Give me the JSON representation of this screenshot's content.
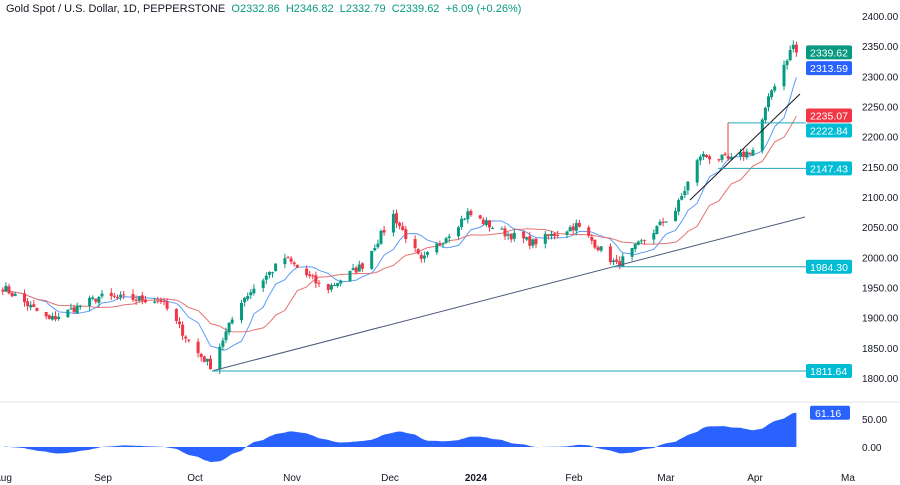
{
  "header": {
    "symbol": "Gold Spot / U.S. Dollar, 1D, PEPPERSTONE",
    "open": "O2332.86",
    "high": "H2346.82",
    "low": "L2332.79",
    "close": "C2339.62",
    "change": "+6.09 (+0.26%)"
  },
  "chart_data": {
    "type": "candlestick",
    "price_axis": {
      "ticks": [
        "2400.00",
        "2350.00",
        "2300.00",
        "2250.00",
        "2200.00",
        "2150.00",
        "2100.00",
        "2050.00",
        "2000.00",
        "1950.00",
        "1900.00",
        "1850.00",
        "1800.00"
      ],
      "range": [
        1790,
        2405
      ]
    },
    "time_axis": {
      "ticks": [
        "Aug",
        "Sep",
        "Oct",
        "Nov",
        "Dec",
        "2024",
        "Feb",
        "Mar",
        "Apr",
        "Ma"
      ]
    },
    "close_path": [
      [
        "2023-07-30",
        1954
      ],
      [
        "2023-08-15",
        1896
      ],
      [
        "2023-08-31",
        1934
      ],
      [
        "2023-09-20",
        1929
      ],
      [
        "2023-10-01",
        1846
      ],
      [
        "2023-10-06",
        1821
      ],
      [
        "2023-10-16",
        1929
      ],
      [
        "2023-10-30",
        1999
      ],
      [
        "2023-11-12",
        1946
      ],
      [
        "2023-11-24",
        1987
      ],
      [
        "2023-12-04",
        2070
      ],
      [
        "2023-12-13",
        1992
      ],
      [
        "2023-12-28",
        2073
      ],
      [
        "2024-01-08",
        2042
      ],
      [
        "2024-01-18",
        2024
      ],
      [
        "2024-02-01",
        2053
      ],
      [
        "2024-02-14",
        1987
      ],
      [
        "2024-02-23",
        2029
      ],
      [
        "2024-03-04",
        2078
      ],
      [
        "2024-03-12",
        2169
      ],
      [
        "2024-03-22",
        2161
      ],
      [
        "2024-03-29",
        2178
      ],
      [
        "2024-04-04",
        2277
      ],
      [
        "2024-04-11",
        2352
      ],
      [
        "2024-04-12",
        2339.62
      ]
    ],
    "price_labels": [
      {
        "value": 2339.62,
        "text": "2339.62",
        "color": "#089981"
      },
      {
        "value": 2313.59,
        "text": "2313.59",
        "color": "#2962ff"
      },
      {
        "value": 2235.07,
        "text": "2235.07",
        "color": "#f23645"
      },
      {
        "value": 2222.84,
        "text": "2222.84",
        "color": "#00bcd4"
      },
      {
        "value": 2147.43,
        "text": "2147.43",
        "color": "#00bcd4"
      },
      {
        "value": 1984.3,
        "text": "1984.30",
        "color": "#00bcd4"
      },
      {
        "value": 1811.64,
        "text": "1811.64",
        "color": "#00bcd4"
      }
    ],
    "horizontal_levels": [
      2222.84,
      2147.43,
      1984.3,
      1811.64
    ],
    "moving_averages": [
      {
        "color": "#5b9cf6"
      },
      {
        "color": "#e57373"
      }
    ],
    "oscillator": {
      "ticks": [
        "50.00",
        "0.00"
      ],
      "last_value": "61.16",
      "color": "#2962ff"
    },
    "colors": {
      "up": "#089981",
      "down": "#f23645",
      "trendline": "#4a5a7a",
      "level": "#26a6b8"
    }
  }
}
